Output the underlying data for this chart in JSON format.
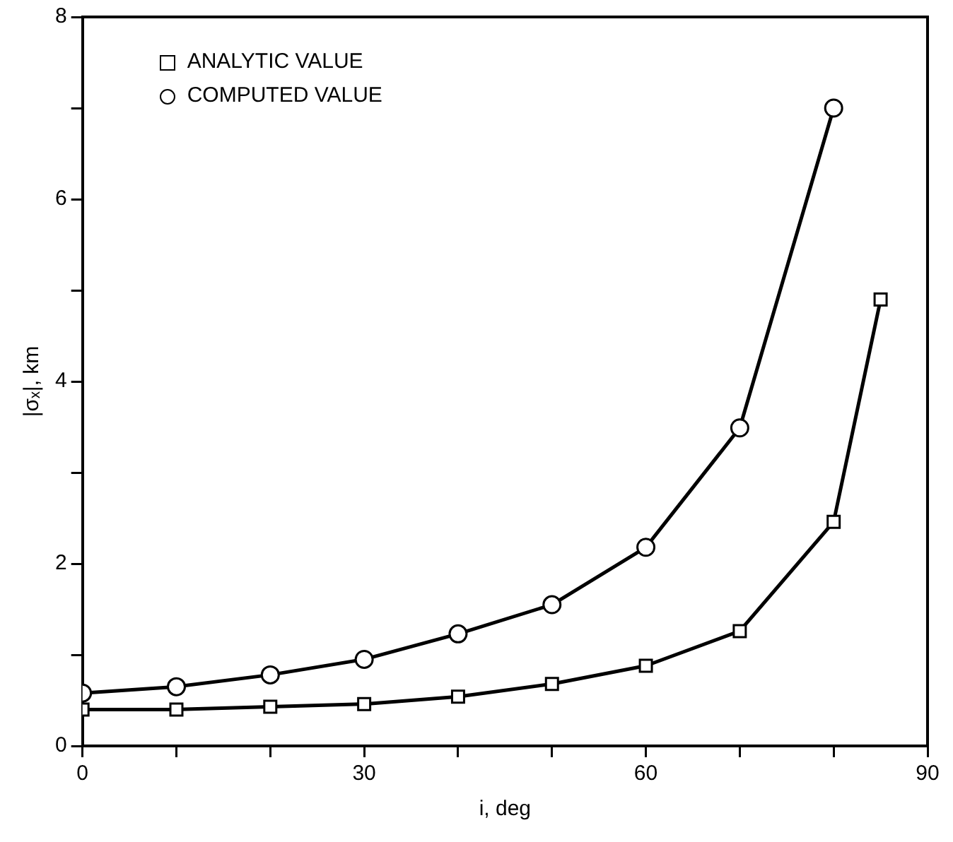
{
  "chart_data": {
    "type": "line",
    "xlabel": "i, deg",
    "ylabel": "|σₓ|, km",
    "xlim": [
      0,
      90
    ],
    "xticks": [
      0,
      {
        "value": 10,
        "label": null
      },
      {
        "value": 20,
        "label": null
      },
      30,
      {
        "value": 40,
        "label": null
      },
      {
        "value": 50,
        "label": null
      },
      60,
      {
        "value": 70,
        "label": null
      },
      {
        "value": 80,
        "label": null
      },
      90
    ],
    "ylim": [
      0,
      8
    ],
    "yticks": [
      0,
      {
        "value": 1,
        "label": null
      },
      2,
      {
        "value": 3,
        "label": null
      },
      4,
      {
        "value": 5,
        "label": null
      },
      6,
      {
        "value": 7,
        "label": null
      },
      8
    ],
    "grid": false,
    "legend": "top left",
    "line_style": "solid",
    "series": [
      {
        "name": "ANALYTIC VALUE",
        "color": "#000000",
        "marker": "square",
        "x": [
          0,
          10,
          20,
          30,
          40,
          50,
          60,
          70,
          80,
          85
        ],
        "values": [
          0.4,
          0.4,
          0.43,
          0.46,
          0.54,
          0.68,
          0.88,
          1.26,
          2.46,
          4.9
        ]
      },
      {
        "name": "COMPUTED VALUE",
        "color": "#000000",
        "marker": "circle",
        "x": [
          0,
          10,
          20,
          30,
          40,
          50,
          60,
          70,
          80
        ],
        "values": [
          0.58,
          0.65,
          0.78,
          0.95,
          1.23,
          1.55,
          2.18,
          3.49,
          7.0
        ]
      }
    ]
  }
}
